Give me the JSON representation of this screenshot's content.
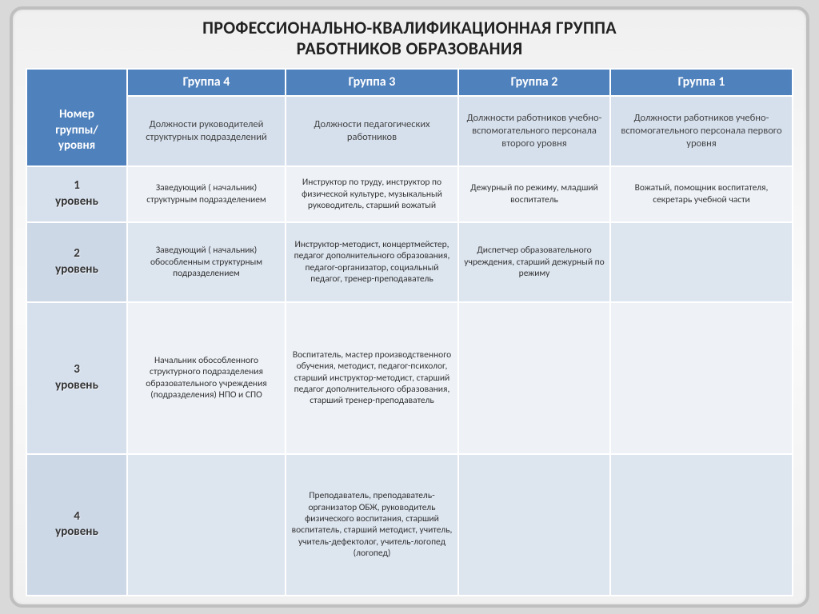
{
  "title_line1": "ПРОФЕССИОНАЛЬНО-КВАЛИФИКАЦИОННАЯ ГРУППА",
  "title_line2": "РАБОТНИКОВ ОБРАЗОВАНИЯ",
  "colors": {
    "page_bg": "#d9d9d9",
    "slide_border": "#bfbfbf",
    "header_dark": "#4f81bd",
    "header_light": "#d6e0ed",
    "body_a": "#eef2f7",
    "body_b": "#dde5ef",
    "cell_border": "#ffffff",
    "text": "#333333"
  },
  "columns": {
    "row_label_l1": "Номер",
    "row_label_l2": "группы/",
    "row_label_l3": "уровня",
    "g4": "Группа 4",
    "g3": "Группа 3",
    "g2": "Группа 2",
    "g1": "Группа 1"
  },
  "subheader": {
    "g4": "Должности руководителей структурных подразделений",
    "g3": "Должности педагогических работников",
    "g2": "Должности работников учебно-вспомогательного персонала второго уровня",
    "g1": "Должности работников учебно-вспомогательного персонала первого уровня"
  },
  "rows": [
    {
      "label_l1": "1",
      "label_l2": "уровень",
      "g4": "Заведующий ( начальник) структурным подразделением",
      "g3": "Инструктор по труду, инструктор по физической культуре, музыкальный руководитель, старший вожатый",
      "g2": "Дежурный по режиму, младший воспитатель",
      "g1": "Вожатый, помощник воспитателя, секретарь учебной части"
    },
    {
      "label_l1": "2",
      "label_l2": "уровень",
      "g4": "Заведующий ( начальник) обособленным структурным подразделением",
      "g3": "Инструктор-методист, концертмейстер, педагог дополнительного образования, педагог-организатор, социальный педагог, тренер-преподаватель",
      "g2": "Диспетчер образовательного учреждения, старший дежурный по режиму",
      "g1": ""
    },
    {
      "label_l1": "3",
      "label_l2": "уровень",
      "g4": "Начальник обособленного структурного подразделения образовательного учреждения (подразделения) НПО и СПО",
      "g3": "Воспитатель, мастер производственного обучения, методист, педагог-психолог, старший инструктор-методист, старший педагог дополнительного образования, старший тренер-преподаватель",
      "g2": "",
      "g1": ""
    },
    {
      "label_l1": "4",
      "label_l2": "уровень",
      "g4": "",
      "g3": "Преподаватель, преподаватель-организатор ОБЖ, руководитель физического воспитания, старший воспитатель, старший методист, учитель, учитель-дефектолог, учитель-логопед (логопед)",
      "g2": "",
      "g1": ""
    }
  ]
}
